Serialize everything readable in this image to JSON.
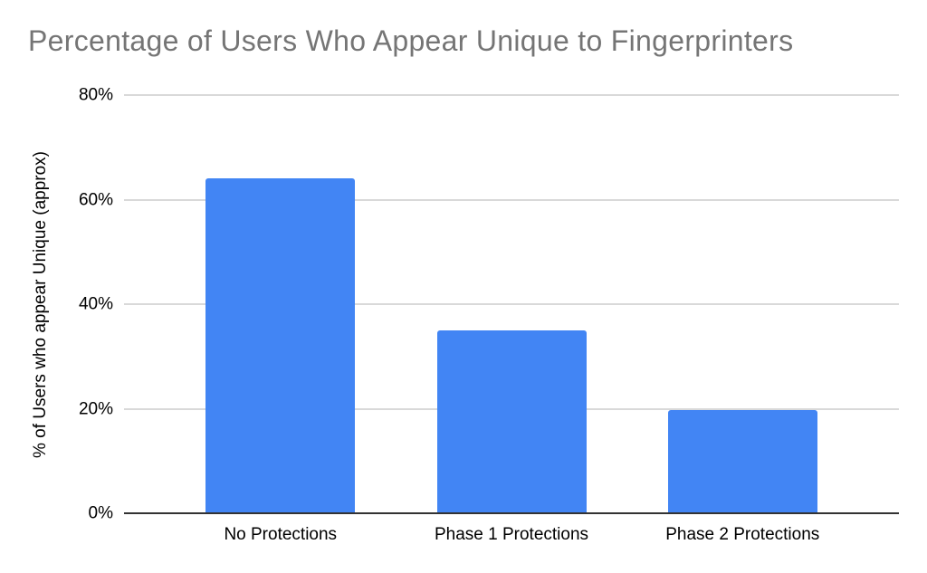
{
  "chart_data": {
    "type": "bar",
    "title": "Percentage of Users Who Appear Unique to Fingerprinters",
    "categories": [
      "No Protections",
      "Phase 1 Protections",
      "Phase 2 Protections"
    ],
    "values": [
      64,
      35,
      19.8
    ],
    "xlabel": "",
    "ylabel": "% of Users who appear Unique (approx)",
    "ylim": [
      0,
      80
    ],
    "yticks": [
      0,
      20,
      40,
      60,
      80
    ],
    "ytick_labels": [
      "0%",
      "20%",
      "40%",
      "60%",
      "80%"
    ],
    "grid": true,
    "legend": "none",
    "colors": {
      "bar": "#4285f4",
      "gridline": "#d9d9d9",
      "axis_line": "#333333",
      "title_text": "#757575",
      "axis_text": "#000000"
    }
  }
}
